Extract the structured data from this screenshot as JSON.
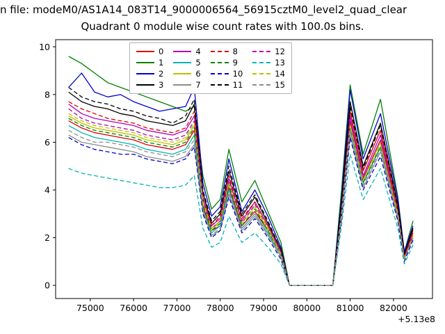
{
  "title_line1": "n file: modeM0/AS1A14_083T14_9000006564_56915cztM0_level2_quad_clear",
  "chart_data": {
    "type": "line",
    "title": "Quadrant 0 module wise count rates with 100.0s bins.",
    "xlabel": "",
    "ylabel": "",
    "x_offset_label": "+5.13e8",
    "xlim": [
      74200,
      82900
    ],
    "ylim": [
      -0.55,
      10.3
    ],
    "x_ticks": [
      75000,
      76000,
      77000,
      78000,
      79000,
      80000,
      81000,
      82000
    ],
    "y_ticks": [
      0,
      2,
      4,
      6,
      8,
      10
    ],
    "grid": false,
    "legend_position": "upper center",
    "x": [
      74500,
      74800,
      75100,
      75400,
      75700,
      76000,
      76300,
      76600,
      76900,
      77200,
      77400,
      77600,
      77800,
      78000,
      78200,
      78500,
      78800,
      79100,
      79400,
      79600,
      80200,
      80600,
      80800,
      81000,
      81300,
      81700,
      82100,
      82250,
      82450
    ],
    "series": [
      {
        "name": "0",
        "color": "#dd0000",
        "dash": false,
        "values": [
          6.9,
          6.6,
          6.4,
          6.3,
          6.2,
          6.1,
          5.9,
          5.8,
          5.7,
          5.9,
          6.5,
          3.3,
          2.3,
          2.5,
          4.1,
          2.5,
          3.1,
          2.3,
          1.3,
          0,
          0,
          0,
          3.3,
          7.3,
          4.8,
          6.5,
          3.2,
          1.2,
          2.3
        ]
      },
      {
        "name": "1",
        "color": "#008000",
        "dash": false,
        "values": [
          9.6,
          9.3,
          8.9,
          8.5,
          8.3,
          8.1,
          7.9,
          7.7,
          7.5,
          7.3,
          7.5,
          4.6,
          3.2,
          3.6,
          5.7,
          3.5,
          4.4,
          3.1,
          1.8,
          0,
          0,
          0,
          4.0,
          8.4,
          5.5,
          7.8,
          3.7,
          1.4,
          2.7
        ]
      },
      {
        "name": "2",
        "color": "#0000cc",
        "dash": false,
        "values": [
          8.3,
          8.9,
          8.1,
          7.9,
          8.0,
          7.7,
          7.5,
          7.3,
          7.4,
          7.5,
          8.3,
          4.3,
          2.9,
          3.3,
          5.3,
          3.1,
          4.0,
          2.9,
          1.6,
          0,
          0,
          0,
          3.7,
          8.2,
          5.3,
          7.2,
          3.6,
          1.4,
          2.5
        ]
      },
      {
        "name": "3",
        "color": "#000000",
        "dash": false,
        "values": [
          8.1,
          7.7,
          7.5,
          7.4,
          7.2,
          7.1,
          6.9,
          6.8,
          6.7,
          6.9,
          7.6,
          3.9,
          2.6,
          3.0,
          4.8,
          2.9,
          3.7,
          2.6,
          1.5,
          0,
          0,
          0,
          3.5,
          7.7,
          5.0,
          6.8,
          3.4,
          1.3,
          2.4
        ]
      },
      {
        "name": "4",
        "color": "#b400b4",
        "dash": false,
        "values": [
          7.6,
          7.2,
          7.0,
          6.9,
          6.8,
          6.7,
          6.5,
          6.4,
          6.3,
          6.5,
          7.1,
          3.7,
          2.5,
          2.8,
          4.5,
          2.7,
          3.5,
          2.5,
          1.4,
          0,
          0,
          0,
          3.2,
          7.1,
          4.6,
          6.3,
          3.1,
          1.2,
          2.2
        ]
      },
      {
        "name": "5",
        "color": "#00b4b4",
        "dash": false,
        "values": [
          6.7,
          6.4,
          6.2,
          6.1,
          6.0,
          5.9,
          5.7,
          5.6,
          5.5,
          5.7,
          6.3,
          3.2,
          2.2,
          2.5,
          4.0,
          2.4,
          3.0,
          2.2,
          1.2,
          0,
          0,
          0,
          3.0,
          6.5,
          4.3,
          5.8,
          2.9,
          1.1,
          2.0
        ]
      },
      {
        "name": "6",
        "color": "#bfbf00",
        "dash": false,
        "values": [
          7.1,
          6.8,
          6.6,
          6.5,
          6.4,
          6.3,
          6.1,
          6.0,
          5.9,
          6.1,
          6.7,
          3.5,
          2.3,
          2.7,
          4.3,
          2.6,
          3.3,
          2.3,
          1.3,
          0,
          0,
          0,
          3.1,
          6.8,
          4.4,
          6.0,
          3.0,
          1.1,
          2.1
        ]
      },
      {
        "name": "7",
        "color": "#8c8c8c",
        "dash": false,
        "values": [
          6.3,
          6.0,
          5.9,
          5.8,
          5.7,
          5.6,
          5.4,
          5.3,
          5.2,
          5.4,
          5.9,
          3.1,
          2.1,
          2.3,
          3.8,
          2.3,
          2.9,
          2.1,
          1.2,
          0,
          0,
          0,
          2.9,
          6.3,
          4.1,
          5.6,
          2.8,
          1.1,
          2.0
        ]
      },
      {
        "name": "8",
        "color": "#dd0000",
        "dash": true,
        "values": [
          7.7,
          7.4,
          7.2,
          7.0,
          6.9,
          6.8,
          6.6,
          6.5,
          6.4,
          6.6,
          7.3,
          3.7,
          2.5,
          2.9,
          4.6,
          2.8,
          3.5,
          2.5,
          1.4,
          0,
          0,
          0,
          3.2,
          6.9,
          4.5,
          6.1,
          3.1,
          1.2,
          2.2
        ]
      },
      {
        "name": "9",
        "color": "#008000",
        "dash": true,
        "values": [
          7.0,
          6.7,
          6.5,
          6.4,
          6.3,
          6.2,
          6.0,
          5.9,
          5.8,
          6.0,
          6.6,
          3.4,
          2.3,
          2.6,
          4.2,
          2.5,
          3.2,
          2.3,
          1.3,
          0,
          0,
          0,
          3.0,
          6.6,
          4.3,
          5.8,
          2.9,
          1.1,
          2.1
        ]
      },
      {
        "name": "10",
        "color": "#0000cc",
        "dash": true,
        "values": [
          6.2,
          5.9,
          5.7,
          5.6,
          5.5,
          5.5,
          5.3,
          5.2,
          5.1,
          5.3,
          5.8,
          3.0,
          2.0,
          2.3,
          3.7,
          2.2,
          2.8,
          2.0,
          1.1,
          0,
          0,
          0,
          2.8,
          6.2,
          4.0,
          5.4,
          2.7,
          1.0,
          1.9
        ]
      },
      {
        "name": "11",
        "color": "#000000",
        "dash": true,
        "values": [
          8.3,
          7.9,
          7.7,
          7.6,
          7.4,
          7.3,
          7.1,
          7.0,
          6.8,
          7.1,
          7.8,
          4.0,
          2.7,
          3.1,
          5.0,
          3.0,
          3.8,
          2.7,
          1.5,
          0,
          0,
          0,
          3.4,
          7.5,
          4.9,
          6.7,
          3.3,
          1.3,
          2.4
        ]
      },
      {
        "name": "12",
        "color": "#b400b4",
        "dash": true,
        "values": [
          7.4,
          7.0,
          6.8,
          6.7,
          6.6,
          6.5,
          6.3,
          6.2,
          6.1,
          6.3,
          6.9,
          3.6,
          2.4,
          2.7,
          4.4,
          2.6,
          3.4,
          2.4,
          1.4,
          0,
          0,
          0,
          3.1,
          6.9,
          4.5,
          6.1,
          3.0,
          1.2,
          2.1
        ]
      },
      {
        "name": "13",
        "color": "#00b4b4",
        "dash": true,
        "values": [
          4.9,
          4.7,
          4.6,
          4.5,
          4.4,
          4.3,
          4.2,
          4.1,
          4.1,
          4.2,
          4.6,
          2.4,
          1.6,
          1.8,
          2.9,
          1.8,
          2.2,
          1.6,
          0.9,
          0,
          0,
          0,
          2.5,
          5.5,
          3.6,
          4.9,
          2.4,
          0.9,
          1.7
        ]
      },
      {
        "name": "14",
        "color": "#bfbf00",
        "dash": true,
        "values": [
          7.2,
          6.9,
          6.7,
          6.6,
          6.5,
          6.4,
          6.2,
          6.1,
          6.0,
          6.2,
          6.8,
          3.5,
          2.4,
          2.7,
          4.3,
          2.6,
          3.3,
          2.4,
          1.3,
          0,
          0,
          0,
          3.0,
          6.7,
          4.4,
          5.9,
          3.0,
          1.1,
          2.1
        ]
      },
      {
        "name": "15",
        "color": "#8c8c8c",
        "dash": true,
        "values": [
          6.5,
          6.2,
          6.0,
          6.0,
          5.9,
          5.8,
          5.6,
          5.5,
          5.4,
          5.6,
          6.1,
          3.2,
          2.1,
          2.4,
          3.9,
          2.4,
          3.0,
          2.1,
          1.2,
          0,
          0,
          0,
          2.9,
          6.5,
          4.2,
          5.7,
          2.9,
          1.1,
          2.0
        ]
      }
    ]
  }
}
